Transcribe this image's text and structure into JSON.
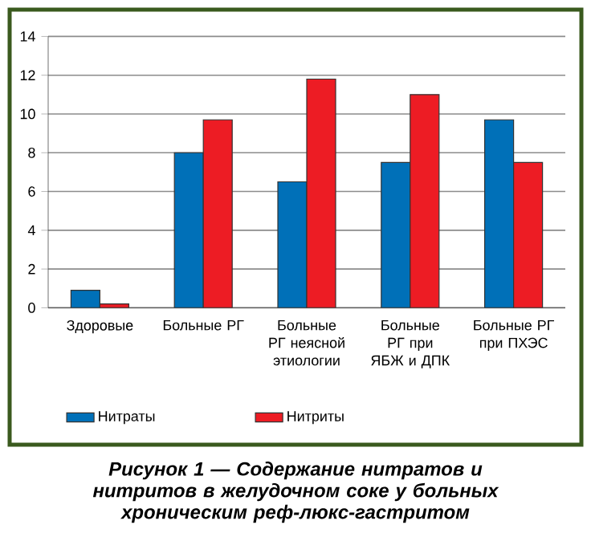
{
  "chart_data": {
    "type": "bar",
    "title": "Рисунок 1 — Содержание нитратов и нитритов в желудочном соке у больных хроническим реф-люкс-гастритом",
    "categories": [
      "Здоровые",
      "Больные РГ",
      "Больные РГ неясной этиологии",
      "Больные РГ при ЯБЖ и ДПК",
      "Больные РГ при ПХЭС"
    ],
    "series": [
      {
        "name": "Нитраты",
        "color": "#0070b8",
        "values": [
          0.9,
          8,
          6.5,
          7.5,
          9.7
        ]
      },
      {
        "name": "Нитриты",
        "color": "#ed1c24",
        "values": [
          0.2,
          9.7,
          11.8,
          11,
          7.5
        ]
      }
    ],
    "ylim": [
      0,
      14
    ],
    "yticks": [
      0,
      2,
      4,
      6,
      8,
      10,
      12,
      14
    ],
    "grid": "y",
    "legend": "bottom"
  }
}
